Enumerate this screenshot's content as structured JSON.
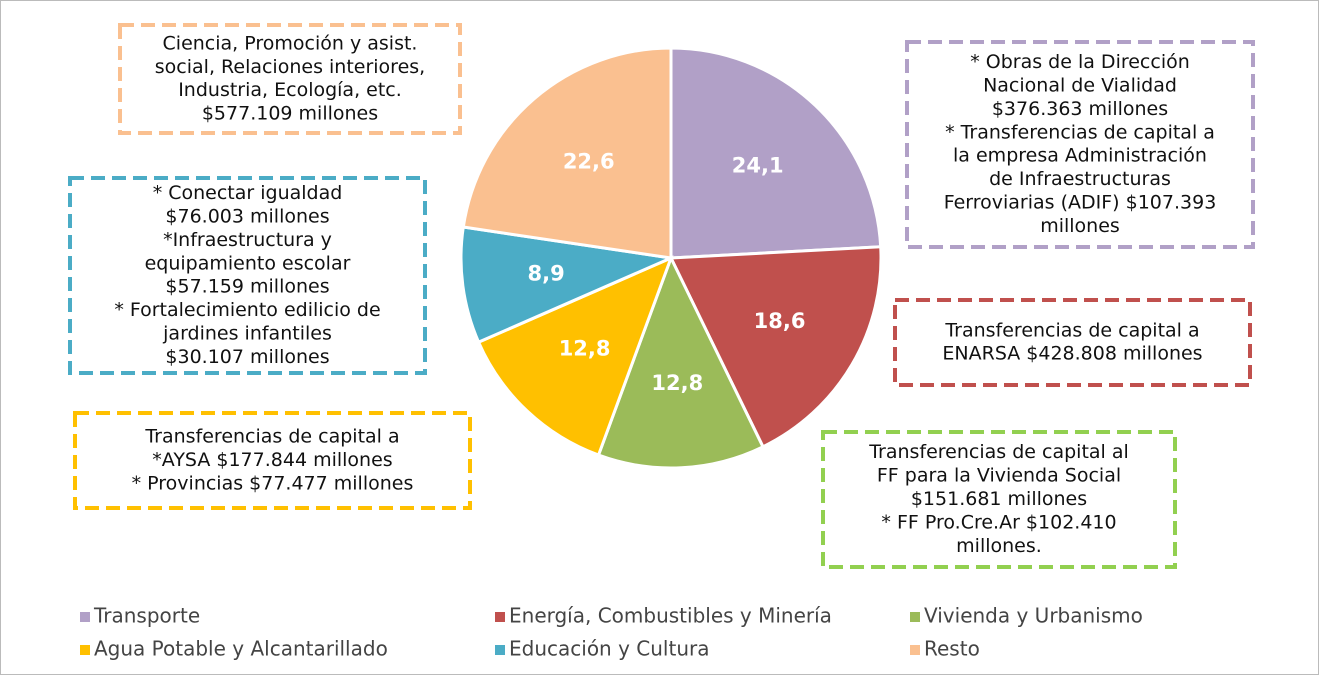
{
  "chart_data": {
    "type": "pie",
    "categories": [
      "Transporte",
      "Energía, Combustibles y Minería",
      "Vivienda y Urbanismo",
      "Agua Potable y Alcantarillado",
      "Educación y Cultura",
      "Resto"
    ],
    "values": [
      24.1,
      18.6,
      12.8,
      12.8,
      8.9,
      22.6
    ],
    "value_labels": [
      "24,1",
      "18,6",
      "12,8",
      "12,8",
      "8,9",
      "22,6"
    ],
    "colors": [
      "#b1a0c7",
      "#c0504d",
      "#9bbb59",
      "#ffc000",
      "#4bacc6",
      "#fac090"
    ],
    "legend": "bottom",
    "annotations": [
      {
        "color": "#b1a0c7",
        "lines": [
          "* Obras de la Dirección",
          "Nacional de Vialidad",
          "$376.363 millones",
          "* Transferencias de capital a",
          "la empresa Administración",
          "de Infraestructuras",
          "Ferroviarias (ADIF) $107.393",
          "millones"
        ]
      },
      {
        "color": "#c0504d",
        "lines": [
          "Transferencias de capital a",
          "ENARSA $428.808 millones"
        ]
      },
      {
        "color": "#92d050",
        "lines": [
          "Transferencias de capital al",
          "FF para la Vivienda Social",
          "$151.681 millones",
          "* FF Pro.Cre.Ar $102.410",
          "millones."
        ]
      },
      {
        "color": "#ffc000",
        "lines": [
          "Transferencias de capital a",
          "*AYSA $177.844 millones",
          "* Provincias $77.477 millones"
        ]
      },
      {
        "color": "#4bacc6",
        "lines": [
          "* Conectar igualdad",
          "$76.003 millones",
          "*Infraestructura y",
          "equipamiento escolar",
          "$57.159 millones",
          "* Fortalecimiento edilicio de",
          "jardines infantiles",
          "$30.107 millones"
        ]
      },
      {
        "color": "#fac090",
        "lines": [
          "Ciencia, Promoción y asist.",
          "social, Relaciones interiores,",
          "Industria, Ecología, etc.",
          "$577.109 millones"
        ]
      }
    ]
  }
}
